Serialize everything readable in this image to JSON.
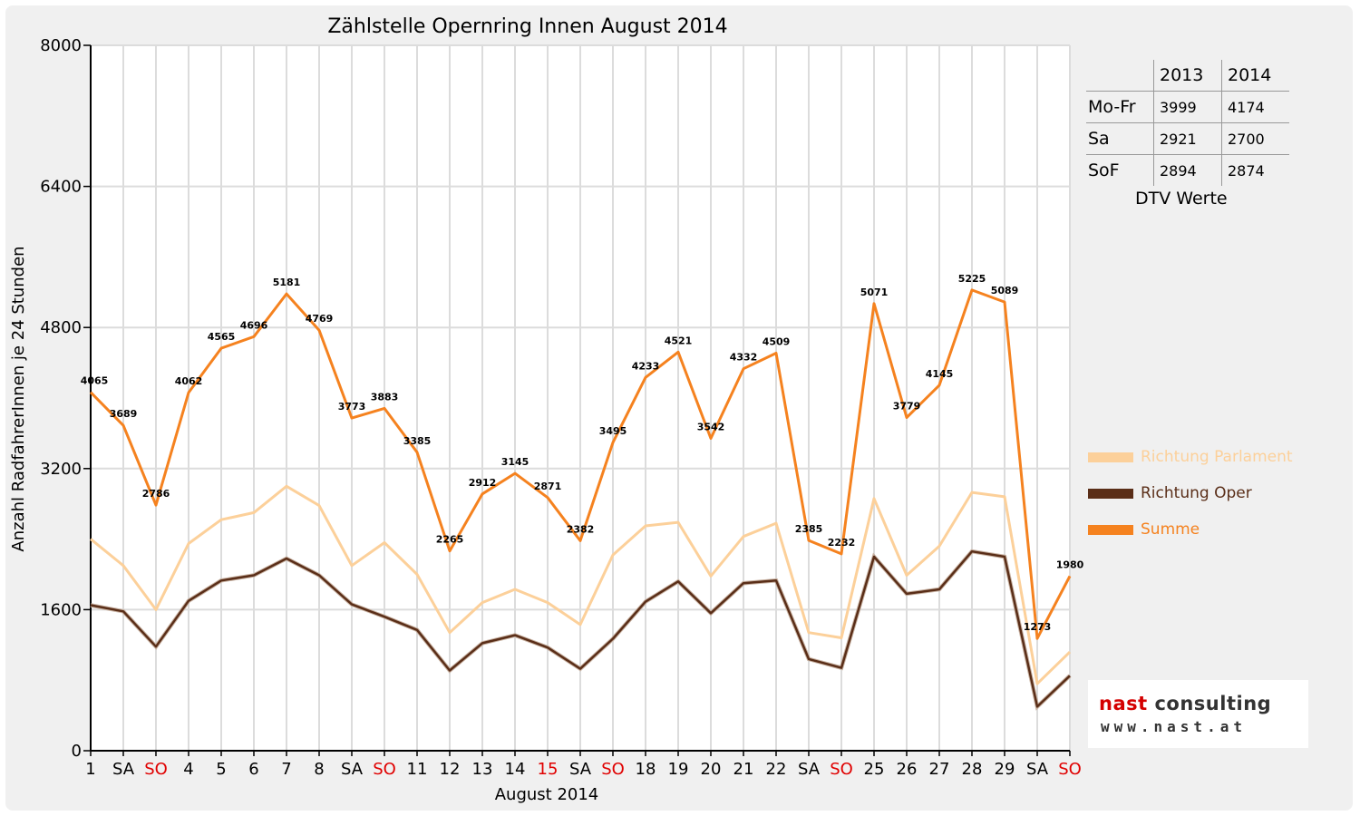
{
  "chart_data": {
    "type": "line",
    "title": "Zählstelle Opernring Innen August 2014",
    "xlabel": "August 2014",
    "ylabel": "Anzahl RadfahrerInnen je 24 Stunden",
    "ylim": [
      0,
      8000
    ],
    "yticks": [
      0,
      1600,
      3200,
      4800,
      6400,
      8000
    ],
    "grid": true,
    "legend_position": "right",
    "categories": [
      "1",
      "SA",
      "SO",
      "4",
      "5",
      "6",
      "7",
      "8",
      "SA",
      "SO",
      "11",
      "12",
      "13",
      "14",
      "15",
      "SA",
      "SO",
      "18",
      "19",
      "20",
      "21",
      "22",
      "SA",
      "SO",
      "25",
      "26",
      "27",
      "28",
      "29",
      "SA",
      "SO"
    ],
    "red_categories": [
      2,
      9,
      14,
      16,
      23,
      30
    ],
    "series": [
      {
        "name": "Richtung Parlament",
        "color": "#fcd09a",
        "values": [
          2400,
          2100,
          1600,
          2350,
          2620,
          2700,
          3000,
          2780,
          2100,
          2360,
          2000,
          1340,
          1680,
          1830,
          1680,
          1430,
          2220,
          2550,
          2590,
          1980,
          2430,
          2580,
          1340,
          1280,
          2860,
          1990,
          2320,
          2930,
          2880,
          760,
          1120
        ]
      },
      {
        "name": "Richtung Oper",
        "color": "#5a2e18",
        "values": [
          1650,
          1580,
          1180,
          1700,
          1930,
          1990,
          2180,
          1990,
          1660,
          1520,
          1370,
          910,
          1220,
          1310,
          1170,
          930,
          1270,
          1690,
          1920,
          1560,
          1900,
          1930,
          1040,
          940,
          2200,
          1780,
          1830,
          2260,
          2200,
          500,
          850
        ]
      },
      {
        "name": "Summe",
        "color": "#f5821f",
        "values": [
          4065,
          3689,
          2786,
          4062,
          4565,
          4696,
          5181,
          4769,
          3773,
          3883,
          3385,
          2265,
          2912,
          3145,
          2871,
          2382,
          3495,
          4233,
          4521,
          3542,
          4332,
          4509,
          2385,
          2232,
          5071,
          3779,
          4145,
          5225,
          5089,
          1273,
          1980
        ]
      }
    ]
  },
  "dtv": {
    "header": [
      "",
      "2013",
      "2014"
    ],
    "rows": [
      {
        "label": "Mo-Fr",
        "y2013": "3999",
        "y2014": "4174"
      },
      {
        "label": "Sa",
        "y2013": "2921",
        "y2014": "2700"
      },
      {
        "label": "SoF",
        "y2013": "2894",
        "y2014": "2874"
      }
    ],
    "caption": "DTV Werte"
  },
  "logo": {
    "name_red": "nast",
    "name_dark": "consulting",
    "url": "www.nast.at"
  }
}
